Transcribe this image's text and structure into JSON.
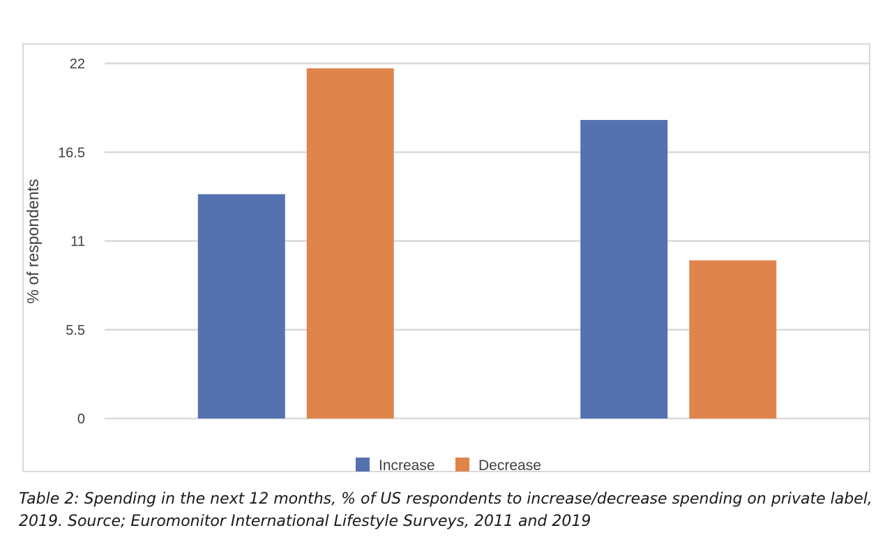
{
  "chart_data": {
    "type": "bar",
    "categories": [
      "",
      ""
    ],
    "series": [
      {
        "name": "Increase",
        "values": [
          13.9,
          18.5
        ],
        "color": "#5572b0"
      },
      {
        "name": "Decrease",
        "values": [
          21.7,
          9.8
        ],
        "color": "#df854c"
      }
    ],
    "yticks": [
      "0",
      "5.5",
      "11",
      "16.5",
      "22"
    ],
    "ylim": [
      0,
      22
    ],
    "ylabel": "% of respondents",
    "xlabel": "",
    "grid": true,
    "legend_position": "bottom"
  },
  "caption": "Table 2: Spending in the next 12 months, % of US respondents to increase/decrease spending on private label, 2019. Source; Euromonitor International Lifestyle Surveys, 2011 and 2019"
}
